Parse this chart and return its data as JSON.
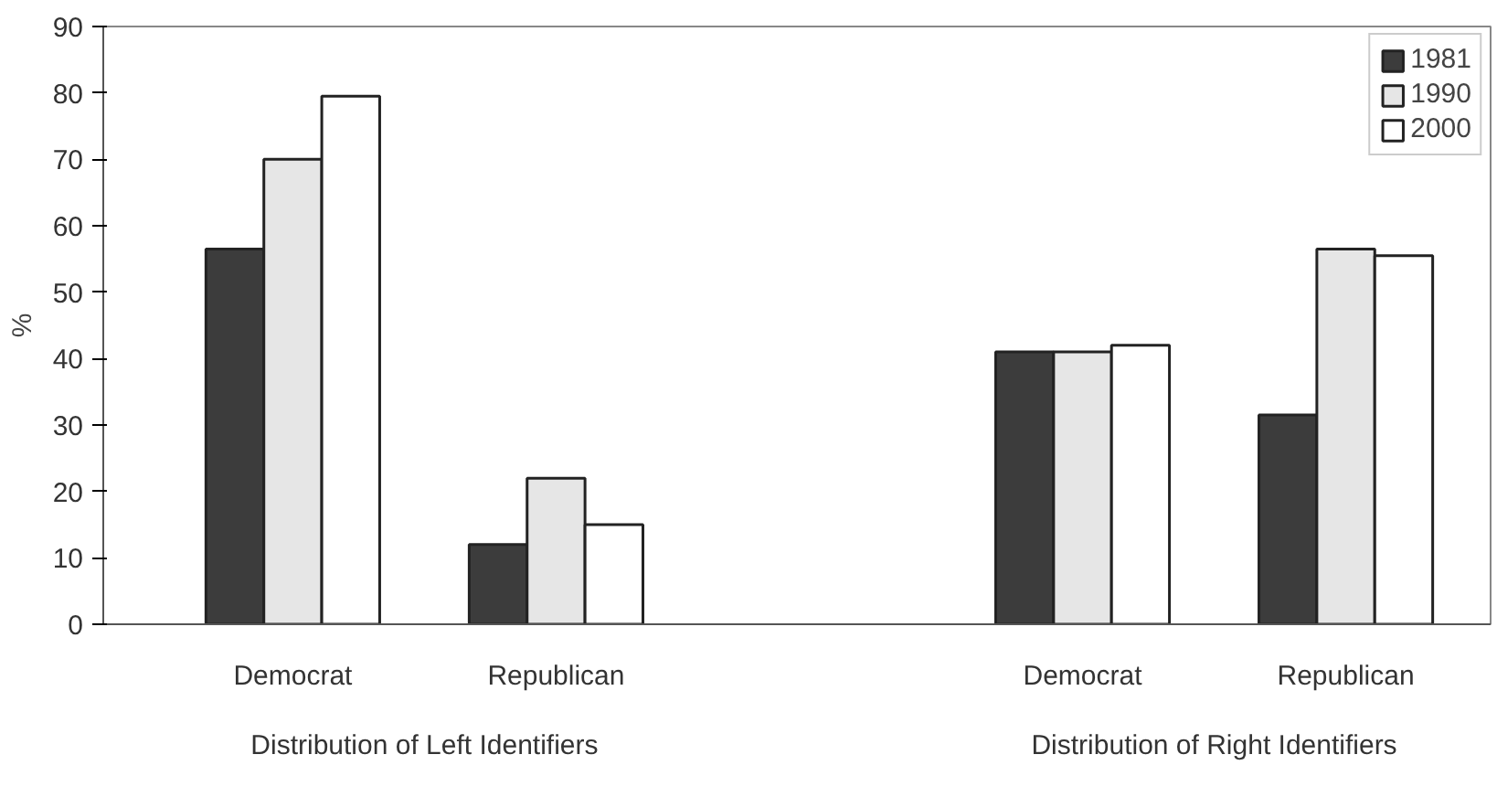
{
  "chart_data": {
    "type": "bar",
    "ylabel": "%",
    "categories": [
      "Democrat",
      "Republican",
      null,
      "Democrat",
      "Republican"
    ],
    "series": [
      {
        "name": "1981",
        "color": "#3c3c3c",
        "values": [
          56.5,
          12,
          null,
          41,
          31.5
        ]
      },
      {
        "name": "1990",
        "color": "#e6e6e6",
        "values": [
          70,
          22,
          null,
          41,
          56.5
        ]
      },
      {
        "name": "2000",
        "color": "#ffffff",
        "values": [
          79.5,
          15,
          null,
          42,
          55.5
        ]
      }
    ],
    "ylim": [
      0,
      90
    ],
    "yticks": [
      0,
      10,
      20,
      30,
      40,
      50,
      60,
      70,
      80,
      90
    ],
    "grid": false,
    "legend": "top right",
    "annotations": [
      "Distribution of Left Identifiers",
      "Distribution of Right Identifiers"
    ]
  }
}
